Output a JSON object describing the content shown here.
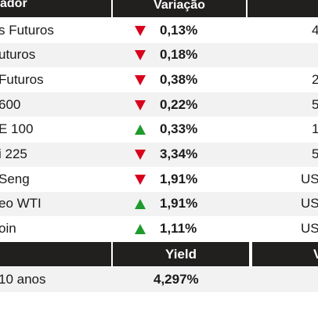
{
  "header": {
    "indicator": "ador",
    "change": "Variação"
  },
  "rows": [
    {
      "name": "s Futuros",
      "direction": "down",
      "change": "0,13%",
      "value": "4"
    },
    {
      "name": "uturos",
      "direction": "down",
      "change": "0,18%",
      "value": ""
    },
    {
      "name": "Futuros",
      "direction": "down",
      "change": "0,38%",
      "value": "2"
    },
    {
      "name": " 600",
      "direction": "down",
      "change": "0,22%",
      "value": "5"
    },
    {
      "name": "E 100",
      "direction": "up",
      "change": "0,33%",
      "value": "1"
    },
    {
      "name": "i 225",
      "direction": "down",
      "change": "3,34%",
      "value": "5"
    },
    {
      "name": "Seng",
      "direction": "down",
      "change": "1,91%",
      "value": "US"
    },
    {
      "name": "eo WTI",
      "direction": "up",
      "change": "1,91%",
      "value": "US"
    },
    {
      "name": "oin",
      "direction": "up",
      "change": "1,11%",
      "value": "US"
    }
  ],
  "bond_header": {
    "yield": "Yield",
    "right": "V"
  },
  "bond_row": {
    "name": "10 anos",
    "yield": "4,297%"
  },
  "colors": {
    "down": "#d8001c",
    "up": "#1f9a2c",
    "header_bg": "#221f1f"
  }
}
